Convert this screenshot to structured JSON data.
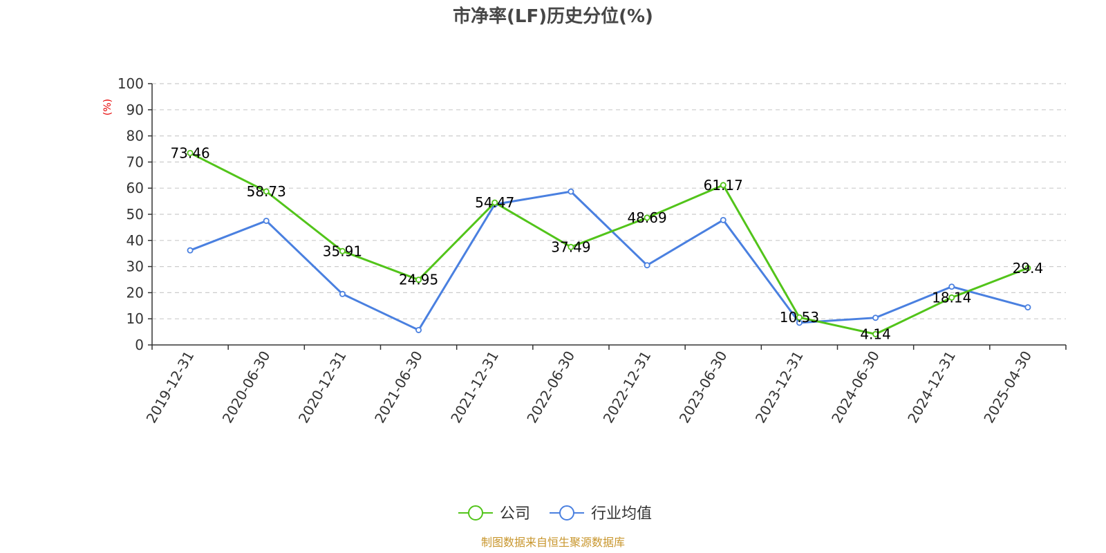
{
  "title": "市净率(LF)历史分位(%)",
  "source": "制图数据来自恒生聚源数据库",
  "colors": {
    "company": "#52c41a",
    "industry": "#4a80e0",
    "axis": "#333333",
    "grid": "#cccccc",
    "unit": "#e60000",
    "source": "#c8962d"
  },
  "chart_data": {
    "type": "line",
    "title": "市净率(LF)历史分位(%)",
    "ylabel": "(%)",
    "ylim": [
      0,
      100
    ],
    "yticks": [
      0,
      10,
      20,
      30,
      40,
      50,
      60,
      70,
      80,
      90,
      100
    ],
    "grid": true,
    "legend_position": "bottom-center",
    "categories": [
      "2019-12-31",
      "2020-06-30",
      "2020-12-31",
      "2021-06-30",
      "2021-12-31",
      "2022-06-30",
      "2022-12-31",
      "2023-06-30",
      "2023-12-31",
      "2024-06-30",
      "2024-12-31",
      "2025-04-30"
    ],
    "series": [
      {
        "name": "公司",
        "values": [
          73.46,
          58.73,
          35.91,
          24.95,
          54.47,
          37.49,
          48.69,
          61.17,
          10.53,
          4.14,
          18.14,
          29.4
        ],
        "labels": [
          "73.46",
          "58.73",
          "35.91",
          "24.95",
          "54.47",
          "37.49",
          "48.69",
          "61.17",
          "10.53",
          "4.14",
          "18.14",
          "29.4"
        ]
      },
      {
        "name": "行业均值",
        "values": [
          36.2,
          47.5,
          19.5,
          5.7,
          53.8,
          58.7,
          30.5,
          47.8,
          8.5,
          10.4,
          22.3,
          14.4
        ]
      }
    ]
  }
}
